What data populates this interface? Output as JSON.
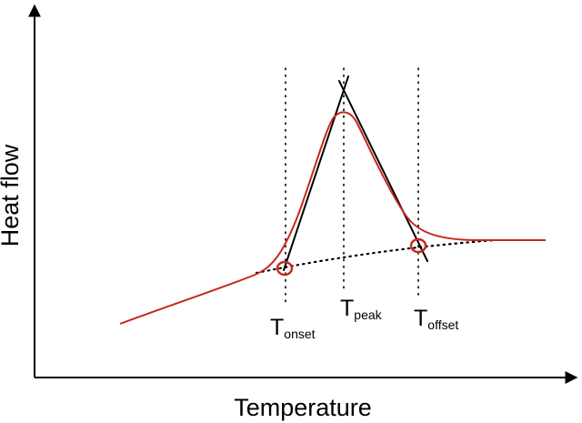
{
  "axes": {
    "x_label": "Temperature",
    "y_label": "Heat flow"
  },
  "temperature_labels": {
    "onset": {
      "main": "T",
      "sub": "onset"
    },
    "peak": {
      "main": "T",
      "sub": "peak"
    },
    "offset": {
      "main": "T",
      "sub": "offset"
    }
  },
  "colors": {
    "curve": "#c8281e",
    "lines": "#000000"
  }
}
